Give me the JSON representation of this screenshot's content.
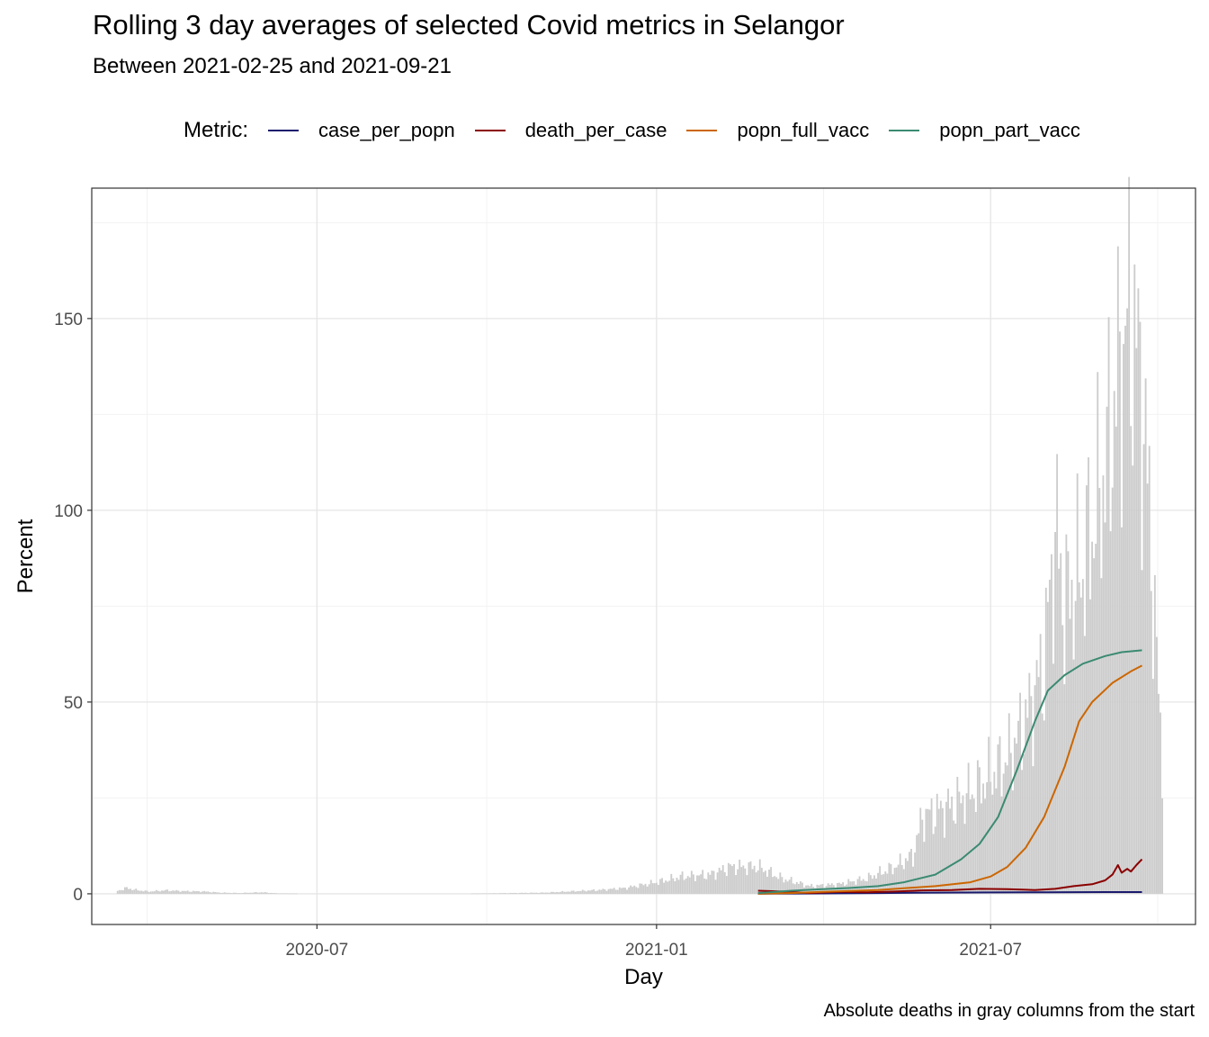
{
  "title": "Rolling 3 day averages of selected Covid metrics in Selangor",
  "subtitle": "Between 2021-02-25 and 2021-09-21",
  "caption": "Absolute deaths in gray columns from the start",
  "legend": {
    "title": "Metric:",
    "items": [
      {
        "label": "case_per_popn",
        "color": "#1a1a6e"
      },
      {
        "label": "death_per_case",
        "color": "#8b0000"
      },
      {
        "label": "popn_full_vacc",
        "color": "#cc6600"
      },
      {
        "label": "popn_part_vacc",
        "color": "#3b8a72"
      }
    ]
  },
  "chart_data": {
    "type": "line",
    "title": "Rolling 3 day averages of selected Covid metrics in Selangor",
    "subtitle": "Between 2021-02-25 and 2021-09-21",
    "xlabel": "Day",
    "ylabel": "Percent",
    "xlim": [
      "2020-03-01",
      "2021-10-20"
    ],
    "ylim": [
      -8,
      184
    ],
    "x_ticks": [
      {
        "date": "2020-07-01",
        "label": "2020-07"
      },
      {
        "date": "2021-01-01",
        "label": "2021-01"
      },
      {
        "date": "2021-07-01",
        "label": "2021-07"
      }
    ],
    "y_ticks": [
      0,
      50,
      100,
      150
    ],
    "grid": true,
    "legend_position": "top",
    "series": [
      {
        "name": "case_per_popn",
        "color": "#1a1a6e",
        "points": [
          [
            "2021-02-25",
            0.05
          ],
          [
            "2021-04-01",
            0.1
          ],
          [
            "2021-05-01",
            0.2
          ],
          [
            "2021-06-01",
            0.3
          ],
          [
            "2021-07-01",
            0.35
          ],
          [
            "2021-08-01",
            0.4
          ],
          [
            "2021-09-01",
            0.45
          ],
          [
            "2021-09-21",
            0.45
          ]
        ]
      },
      {
        "name": "death_per_case",
        "color": "#8b0000",
        "points": [
          [
            "2021-02-25",
            0.8
          ],
          [
            "2021-03-10",
            0.6
          ],
          [
            "2021-03-25",
            0.2
          ],
          [
            "2021-04-10",
            0.5
          ],
          [
            "2021-04-25",
            0.4
          ],
          [
            "2021-05-10",
            0.6
          ],
          [
            "2021-05-25",
            0.9
          ],
          [
            "2021-06-10",
            1.0
          ],
          [
            "2021-06-25",
            1.3
          ],
          [
            "2021-07-10",
            1.2
          ],
          [
            "2021-07-25",
            1.0
          ],
          [
            "2021-08-05",
            1.3
          ],
          [
            "2021-08-15",
            2.0
          ],
          [
            "2021-08-25",
            2.5
          ],
          [
            "2021-09-01",
            3.5
          ],
          [
            "2021-09-05",
            5.0
          ],
          [
            "2021-09-08",
            7.5
          ],
          [
            "2021-09-10",
            5.5
          ],
          [
            "2021-09-13",
            6.5
          ],
          [
            "2021-09-15",
            5.8
          ],
          [
            "2021-09-18",
            7.5
          ],
          [
            "2021-09-21",
            9.0
          ]
        ]
      },
      {
        "name": "popn_full_vacc",
        "color": "#cc6600",
        "points": [
          [
            "2021-02-25",
            0.0
          ],
          [
            "2021-03-15",
            0.2
          ],
          [
            "2021-04-01",
            0.5
          ],
          [
            "2021-05-01",
            1.0
          ],
          [
            "2021-06-01",
            2.0
          ],
          [
            "2021-06-20",
            3.0
          ],
          [
            "2021-07-01",
            4.5
          ],
          [
            "2021-07-10",
            7.0
          ],
          [
            "2021-07-20",
            12.0
          ],
          [
            "2021-07-30",
            20.0
          ],
          [
            "2021-08-10",
            33.0
          ],
          [
            "2021-08-18",
            45.0
          ],
          [
            "2021-08-25",
            50.0
          ],
          [
            "2021-09-05",
            55.0
          ],
          [
            "2021-09-15",
            58.0
          ],
          [
            "2021-09-21",
            59.5
          ]
        ]
      },
      {
        "name": "popn_part_vacc",
        "color": "#3b8a72",
        "points": [
          [
            "2021-02-25",
            0.2
          ],
          [
            "2021-03-15",
            0.8
          ],
          [
            "2021-04-01",
            1.2
          ],
          [
            "2021-04-15",
            1.5
          ],
          [
            "2021-05-01",
            2.0
          ],
          [
            "2021-05-15",
            3.0
          ],
          [
            "2021-06-01",
            5.0
          ],
          [
            "2021-06-15",
            9.0
          ],
          [
            "2021-06-25",
            13.0
          ],
          [
            "2021-07-05",
            20.0
          ],
          [
            "2021-07-15",
            32.0
          ],
          [
            "2021-07-25",
            45.0
          ],
          [
            "2021-08-01",
            53.0
          ],
          [
            "2021-08-10",
            57.0
          ],
          [
            "2021-08-20",
            60.0
          ],
          [
            "2021-09-01",
            62.0
          ],
          [
            "2021-09-10",
            63.0
          ],
          [
            "2021-09-21",
            63.5
          ]
        ]
      }
    ],
    "deaths_columns": {
      "name": "Absolute deaths",
      "color": "#cccccc",
      "knots": [
        [
          "2020-03-15",
          0.8
        ],
        [
          "2020-03-20",
          1.5
        ],
        [
          "2020-03-25",
          1.0
        ],
        [
          "2020-04-01",
          0.6
        ],
        [
          "2020-04-10",
          0.9
        ],
        [
          "2020-04-20",
          0.7
        ],
        [
          "2020-05-01",
          0.6
        ],
        [
          "2020-05-10",
          0.3
        ],
        [
          "2020-05-20",
          0.2
        ],
        [
          "2020-06-01",
          0.4
        ],
        [
          "2020-06-10",
          0.1
        ],
        [
          "2020-07-01",
          0.0
        ],
        [
          "2020-09-15",
          0.0
        ],
        [
          "2020-10-15",
          0.2
        ],
        [
          "2020-11-01",
          0.3
        ],
        [
          "2020-12-01",
          1.0
        ],
        [
          "2020-12-15",
          1.5
        ],
        [
          "2021-01-01",
          3.0
        ],
        [
          "2021-01-15",
          4.5
        ],
        [
          "2021-01-30",
          5.0
        ],
        [
          "2021-02-10",
          7.0
        ],
        [
          "2021-02-25",
          7.0
        ],
        [
          "2021-03-10",
          4.0
        ],
        [
          "2021-03-25",
          2.0
        ],
        [
          "2021-04-10",
          2.5
        ],
        [
          "2021-04-25",
          4.0
        ],
        [
          "2021-05-10",
          7.0
        ],
        [
          "2021-05-20",
          10.0
        ],
        [
          "2021-05-25",
          20.0
        ],
        [
          "2021-06-10",
          23.0
        ],
        [
          "2021-06-25",
          28.0
        ],
        [
          "2021-07-10",
          35.0
        ],
        [
          "2021-07-20",
          45.0
        ],
        [
          "2021-07-30",
          60.0
        ],
        [
          "2021-08-05",
          95.0
        ],
        [
          "2021-08-10",
          75.0
        ],
        [
          "2021-08-20",
          85.0
        ],
        [
          "2021-09-01",
          110.0
        ],
        [
          "2021-09-10",
          140.0
        ],
        [
          "2021-09-15",
          150.0
        ],
        [
          "2021-09-20",
          135.0
        ],
        [
          "2021-09-25",
          100.0
        ],
        [
          "2021-09-29",
          60.0
        ],
        [
          "2021-10-02",
          35.0
        ]
      ]
    }
  }
}
